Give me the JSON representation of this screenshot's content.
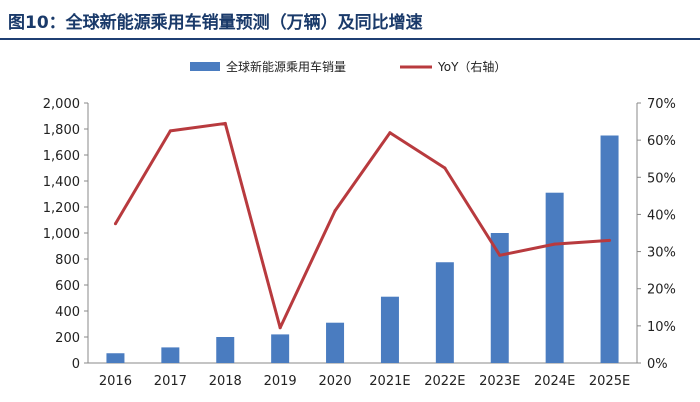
{
  "header": {
    "title": "图10：全球新能源乘用车销量预测（万辆）及同比增速"
  },
  "colors": {
    "bar": "#4a7cc0",
    "line": "#b83a3e",
    "title": "#1a3a6a",
    "rule": "#1f3f73",
    "axis": "#888888"
  },
  "chart_data": {
    "type": "bar",
    "categories": [
      "2016",
      "2017",
      "2018",
      "2019",
      "2020",
      "2021E",
      "2022E",
      "2023E",
      "2024E",
      "2025E"
    ],
    "series": [
      {
        "name": "全球新能源乘用车销量",
        "type": "bar",
        "axis": "left",
        "values": [
          75,
          120,
          200,
          220,
          310,
          510,
          775,
          1000,
          1310,
          1750
        ]
      },
      {
        "name": "YoY（右轴）",
        "type": "line",
        "axis": "right",
        "values": [
          37.5,
          62.5,
          64.5,
          9.5,
          41,
          62,
          52.5,
          29,
          32,
          33
        ]
      }
    ],
    "y_left": {
      "ylim": [
        0,
        2000
      ],
      "ticks": [
        "0",
        "200",
        "400",
        "600",
        "800",
        "1,000",
        "1,200",
        "1,400",
        "1,600",
        "1,800",
        "2,000"
      ]
    },
    "y_right": {
      "ylim": [
        0,
        70
      ],
      "ticks": [
        "0%",
        "10%",
        "20%",
        "30%",
        "40%",
        "50%",
        "60%",
        "70%"
      ]
    },
    "legend_position": "top-center",
    "grid": false
  }
}
